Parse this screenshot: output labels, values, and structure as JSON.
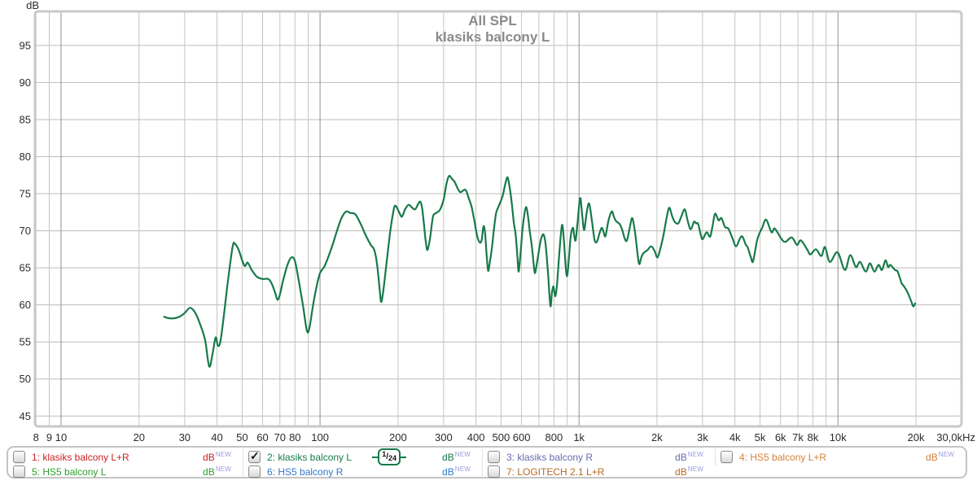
{
  "chart_data": {
    "type": "line",
    "title": "All SPL",
    "subtitle": "klasiks balcony L",
    "ylabel": "dB",
    "x_scale": "log",
    "grid": true,
    "x_range": [
      7.93,
      30000
    ],
    "y_range": [
      43.6,
      99.6
    ],
    "y_ticks": [
      45,
      50,
      55,
      60,
      65,
      70,
      75,
      80,
      85,
      90,
      95
    ],
    "x_gridlines": [
      8,
      9,
      10,
      20,
      30,
      40,
      50,
      60,
      70,
      80,
      90,
      100,
      200,
      300,
      400,
      500,
      600,
      700,
      800,
      900,
      1000,
      2000,
      3000,
      4000,
      5000,
      6000,
      7000,
      8000,
      9000,
      10000,
      20000
    ],
    "decade_gridlines": [
      10,
      100,
      1000,
      10000
    ],
    "x_ticks": [
      {
        "f": 8,
        "label": "8"
      },
      {
        "f": 9,
        "label": "9"
      },
      {
        "f": 10,
        "label": "10"
      },
      {
        "f": 20,
        "label": "20"
      },
      {
        "f": 30,
        "label": "30"
      },
      {
        "f": 40,
        "label": "40"
      },
      {
        "f": 50,
        "label": "50"
      },
      {
        "f": 60,
        "label": "60"
      },
      {
        "f": 70,
        "label": "70"
      },
      {
        "f": 80,
        "label": "80"
      },
      {
        "f": 100,
        "label": "100"
      },
      {
        "f": 200,
        "label": "200"
      },
      {
        "f": 300,
        "label": "300"
      },
      {
        "f": 400,
        "label": "400"
      },
      {
        "f": 500,
        "label": "500"
      },
      {
        "f": 600,
        "label": "600"
      },
      {
        "f": 800,
        "label": "800"
      },
      {
        "f": 1000,
        "label": "1k"
      },
      {
        "f": 2000,
        "label": "2k"
      },
      {
        "f": 3000,
        "label": "3k"
      },
      {
        "f": 4000,
        "label": "4k"
      },
      {
        "f": 5000,
        "label": "5k"
      },
      {
        "f": 6000,
        "label": "6k"
      },
      {
        "f": 7000,
        "label": "7k"
      },
      {
        "f": 8000,
        "label": "8k"
      },
      {
        "f": 10000,
        "label": "10k"
      },
      {
        "f": 20000,
        "label": "20k"
      },
      {
        "f": 30000,
        "label": "30,0kHz"
      }
    ],
    "series": [
      {
        "name": "2: klasiks balcony L",
        "color": "#177a4a",
        "smoothing": "1/24",
        "points": [
          [
            25,
            58.4
          ],
          [
            26,
            58.2
          ],
          [
            27.5,
            58.2
          ],
          [
            29,
            58.5
          ],
          [
            30,
            58.9
          ],
          [
            31.5,
            59.6
          ],
          [
            33,
            58.9
          ],
          [
            34.5,
            57.3
          ],
          [
            36,
            55.2
          ],
          [
            37.3,
            51.7
          ],
          [
            38.4,
            53.3
          ],
          [
            39.5,
            55.6
          ],
          [
            40.3,
            54.5
          ],
          [
            41.2,
            55.0
          ],
          [
            42.5,
            58.5
          ],
          [
            44,
            63.0
          ],
          [
            46,
            67.9
          ],
          [
            47,
            68.2
          ],
          [
            48.5,
            67.4
          ],
          [
            51,
            65.3
          ],
          [
            52.5,
            65.7
          ],
          [
            54.5,
            64.7
          ],
          [
            57,
            63.8
          ],
          [
            60,
            63.5
          ],
          [
            63,
            63.5
          ],
          [
            65,
            62.9
          ],
          [
            67,
            61.7
          ],
          [
            68.5,
            60.7
          ],
          [
            70,
            61.4
          ],
          [
            72,
            63.3
          ],
          [
            75,
            65.5
          ],
          [
            77.5,
            66.4
          ],
          [
            80,
            65.9
          ],
          [
            83,
            63.0
          ],
          [
            86,
            59.8
          ],
          [
            89,
            56.5
          ],
          [
            91,
            56.9
          ],
          [
            94,
            60.0
          ],
          [
            97,
            62.5
          ],
          [
            100,
            64.3
          ],
          [
            104,
            65.2
          ],
          [
            108,
            66.6
          ],
          [
            112,
            68.2
          ],
          [
            117,
            70.3
          ],
          [
            121,
            71.7
          ],
          [
            126,
            72.6
          ],
          [
            131,
            72.4
          ],
          [
            137,
            72.2
          ],
          [
            144,
            70.8
          ],
          [
            150,
            69.4
          ],
          [
            157,
            68.1
          ],
          [
            162,
            67.4
          ],
          [
            166,
            65.5
          ],
          [
            170,
            62.0
          ],
          [
            172,
            60.4
          ],
          [
            175,
            61.6
          ],
          [
            180,
            65.2
          ],
          [
            186,
            69.5
          ],
          [
            191,
            72.2
          ],
          [
            195,
            73.4
          ],
          [
            202,
            72.5
          ],
          [
            207,
            71.9
          ],
          [
            213,
            72.9
          ],
          [
            220,
            73.5
          ],
          [
            227,
            73.1
          ],
          [
            233,
            72.9
          ],
          [
            240,
            73.7
          ],
          [
            244,
            73.9
          ],
          [
            248,
            73.0
          ],
          [
            252,
            70.8
          ],
          [
            256,
            68.5
          ],
          [
            260,
            67.4
          ],
          [
            266,
            69.0
          ],
          [
            273,
            71.9
          ],
          [
            281,
            72.4
          ],
          [
            290,
            72.8
          ],
          [
            300,
            74.2
          ],
          [
            308,
            76.4
          ],
          [
            315,
            77.4
          ],
          [
            323,
            77.0
          ],
          [
            331,
            76.6
          ],
          [
            340,
            75.7
          ],
          [
            348,
            75.2
          ],
          [
            356,
            75.4
          ],
          [
            365,
            75.5
          ],
          [
            375,
            74.4
          ],
          [
            385,
            73.2
          ],
          [
            395,
            71.2
          ],
          [
            405,
            69.2
          ],
          [
            414,
            68.4
          ],
          [
            421,
            68.8
          ],
          [
            428,
            70.6
          ],
          [
            434,
            69.6
          ],
          [
            440,
            66.6
          ],
          [
            446,
            64.6
          ],
          [
            453,
            65.9
          ],
          [
            461,
            67.7
          ],
          [
            470,
            70.4
          ],
          [
            478,
            72.3
          ],
          [
            484,
            72.9
          ],
          [
            495,
            73.7
          ],
          [
            508,
            74.8
          ],
          [
            519,
            76.3
          ],
          [
            530,
            77.2
          ],
          [
            541,
            75.6
          ],
          [
            550,
            73.7
          ],
          [
            560,
            71.1
          ],
          [
            570,
            69.3
          ],
          [
            579,
            66.2
          ],
          [
            585,
            64.5
          ],
          [
            594,
            66.8
          ],
          [
            604,
            69.9
          ],
          [
            614,
            72.0
          ],
          [
            624,
            73.2
          ],
          [
            634,
            72.2
          ],
          [
            645,
            70.0
          ],
          [
            656,
            68.2
          ],
          [
            666,
            66.0
          ],
          [
            675,
            64.3
          ],
          [
            686,
            65.4
          ],
          [
            700,
            67.3
          ],
          [
            714,
            68.9
          ],
          [
            729,
            69.5
          ],
          [
            743,
            68.2
          ],
          [
            758,
            64.6
          ],
          [
            775,
            59.9
          ],
          [
            786,
            61.6
          ],
          [
            795,
            62.5
          ],
          [
            803,
            61.8
          ],
          [
            811,
            61.2
          ],
          [
            822,
            62.7
          ],
          [
            836,
            66.1
          ],
          [
            850,
            69.3
          ],
          [
            862,
            70.8
          ],
          [
            875,
            68.6
          ],
          [
            888,
            65.2
          ],
          [
            900,
            63.9
          ],
          [
            914,
            66.3
          ],
          [
            929,
            69.3
          ],
          [
            947,
            70.4
          ],
          [
            958,
            69.4
          ],
          [
            970,
            68.7
          ],
          [
            986,
            70.9
          ],
          [
            1010,
            74.4
          ],
          [
            1028,
            72.2
          ],
          [
            1047,
            70.1
          ],
          [
            1069,
            72.3
          ],
          [
            1093,
            73.7
          ],
          [
            1119,
            71.6
          ],
          [
            1148,
            68.8
          ],
          [
            1172,
            68.5
          ],
          [
            1199,
            69.6
          ],
          [
            1224,
            70.4
          ],
          [
            1247,
            69.7
          ],
          [
            1266,
            69.3
          ],
          [
            1300,
            71.4
          ],
          [
            1338,
            72.6
          ],
          [
            1363,
            71.9
          ],
          [
            1390,
            71.3
          ],
          [
            1436,
            70.9
          ],
          [
            1469,
            70.1
          ],
          [
            1503,
            68.9
          ],
          [
            1531,
            68.7
          ],
          [
            1568,
            70.3
          ],
          [
            1606,
            71.7
          ],
          [
            1648,
            69.6
          ],
          [
            1689,
            66.4
          ],
          [
            1711,
            65.5
          ],
          [
            1740,
            66.4
          ],
          [
            1776,
            67.0
          ],
          [
            1840,
            67.4
          ],
          [
            1899,
            67.9
          ],
          [
            1957,
            67.3
          ],
          [
            2008,
            66.4
          ],
          [
            2062,
            67.6
          ],
          [
            2119,
            69.4
          ],
          [
            2178,
            71.7
          ],
          [
            2230,
            73.1
          ],
          [
            2288,
            72.0
          ],
          [
            2342,
            71.2
          ],
          [
            2417,
            71.0
          ],
          [
            2482,
            71.9
          ],
          [
            2561,
            72.9
          ],
          [
            2622,
            71.5
          ],
          [
            2697,
            70.2
          ],
          [
            2780,
            71.2
          ],
          [
            2832,
            71.0
          ],
          [
            2886,
            70.9
          ],
          [
            2964,
            69.2
          ],
          [
            3010,
            68.9
          ],
          [
            3109,
            69.8
          ],
          [
            3209,
            69.2
          ],
          [
            3280,
            70.7
          ],
          [
            3354,
            72.3
          ],
          [
            3458,
            71.4
          ],
          [
            3547,
            71.7
          ],
          [
            3662,
            70.5
          ],
          [
            3771,
            70.3
          ],
          [
            3913,
            69.0
          ],
          [
            4041,
            67.9
          ],
          [
            4187,
            69.0
          ],
          [
            4277,
            69.2
          ],
          [
            4409,
            68.1
          ],
          [
            4477,
            67.8
          ],
          [
            4612,
            66.4
          ],
          [
            4702,
            65.9
          ],
          [
            4886,
            68.9
          ],
          [
            5096,
            70.4
          ],
          [
            5280,
            71.5
          ],
          [
            5537,
            69.8
          ],
          [
            5700,
            70.3
          ],
          [
            6048,
            68.9
          ],
          [
            6268,
            68.5
          ],
          [
            6630,
            69.1
          ],
          [
            6948,
            68.1
          ],
          [
            7189,
            68.7
          ],
          [
            7628,
            67.4
          ],
          [
            7822,
            66.8
          ],
          [
            8217,
            67.5
          ],
          [
            8622,
            66.6
          ],
          [
            8911,
            67.8
          ],
          [
            9302,
            65.8
          ],
          [
            9958,
            67.1
          ],
          [
            10628,
            64.7
          ],
          [
            11148,
            66.7
          ],
          [
            11731,
            65.1
          ],
          [
            12168,
            65.8
          ],
          [
            12800,
            64.5
          ],
          [
            13290,
            65.6
          ],
          [
            13820,
            64.5
          ],
          [
            14350,
            65.4
          ],
          [
            14790,
            64.7
          ],
          [
            15250,
            66.0
          ],
          [
            15630,
            65.1
          ],
          [
            15940,
            65.4
          ],
          [
            16600,
            64.7
          ],
          [
            17000,
            64.5
          ],
          [
            17620,
            62.9
          ],
          [
            17830,
            62.7
          ],
          [
            18500,
            61.8
          ],
          [
            19170,
            60.5
          ],
          [
            19530,
            59.8
          ],
          [
            19850,
            60.2
          ]
        ]
      }
    ],
    "colors": {
      "grid_minor": "#c4c4c4",
      "grid_major": "#8f8f8f",
      "grid_horizontal": "#bcbcbc",
      "plot_border": "#c9c9c9",
      "title": "#8a8a8a",
      "tick_text": "#2b2b2b"
    }
  },
  "legend": {
    "tag_color": "#9999e0",
    "items": [
      {
        "label": "1: klasiks balcony L+R",
        "unit": "dB",
        "tag": "NEW",
        "color": "#cc2222",
        "checked": false
      },
      {
        "label": "2: klasiks balcony L",
        "unit": "dB",
        "tag": "NEW",
        "color": "#177a4a",
        "checked": true,
        "smoothing": "1/24",
        "smoothing_num": "1",
        "smoothing_den": "24"
      },
      {
        "label": "3: klasiks balcony R",
        "unit": "dB",
        "tag": "NEW",
        "color": "#6a6ab0",
        "checked": false
      },
      {
        "label": "4: HS5 balcony L+R",
        "unit": "dB",
        "tag": "NEW",
        "color": "#d2823a",
        "checked": false
      },
      {
        "label": "5: HS5 balcony L",
        "unit": "dB",
        "tag": "NEW",
        "color": "#2da02d",
        "checked": false
      },
      {
        "label": "6: HS5 balcony R",
        "unit": "dB",
        "tag": "NEW",
        "color": "#3377cc",
        "checked": false
      },
      {
        "label": "7: LOGITECH 2.1 L+R",
        "unit": "dB",
        "tag": "NEW",
        "color": "#b26a22",
        "checked": false
      }
    ]
  }
}
